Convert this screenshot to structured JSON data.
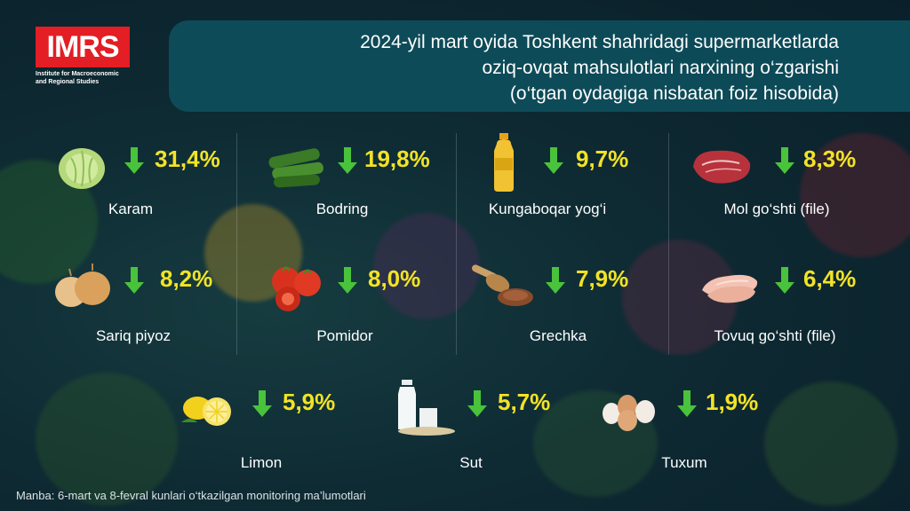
{
  "header": {
    "logo_text": "IMRS",
    "logo_subtitle_line1": "Institute for Macroeconomic",
    "logo_subtitle_line2": "and Regional Studies",
    "title_line1": "2024-yil mart oyida Toshkent shahridagi supermarketlarda",
    "title_line2": "oziq-ovqat mahsulotlari narxining o‘zgarishi",
    "title_line3": "(o‘tgan oydagiga nisbatan foiz hisobida)"
  },
  "colors": {
    "accent_yellow": "#f2e325",
    "arrow_green": "#49c33b",
    "brand_red": "#e31e24",
    "panel_teal": "#0e4e5c"
  },
  "products": [
    {
      "name": "Karam",
      "change": "31,4%",
      "direction": "down",
      "icon": "cabbage-icon"
    },
    {
      "name": "Bodring",
      "change": "19,8%",
      "direction": "down",
      "icon": "cucumber-icon"
    },
    {
      "name": "Kungaboqar yog‘i",
      "change": "9,7%",
      "direction": "down",
      "icon": "oil-bottle-icon"
    },
    {
      "name": "Mol go‘shti (file)",
      "change": "8,3%",
      "direction": "down",
      "icon": "beef-icon"
    },
    {
      "name": "Sariq piyoz",
      "change": "8,2%",
      "direction": "down",
      "icon": "onion-icon"
    },
    {
      "name": "Pomidor",
      "change": "8,0%",
      "direction": "down",
      "icon": "tomato-icon"
    },
    {
      "name": "Grechka",
      "change": "7,9%",
      "direction": "down",
      "icon": "buckwheat-icon"
    },
    {
      "name": "Tovuq go‘shti (file)",
      "change": "6,4%",
      "direction": "down",
      "icon": "chicken-fillet-icon"
    },
    {
      "name": "Limon",
      "change": "5,9%",
      "direction": "down",
      "icon": "lemon-icon"
    },
    {
      "name": "Sut",
      "change": "5,7%",
      "direction": "down",
      "icon": "milk-icon"
    },
    {
      "name": "Tuxum",
      "change": "1,9%",
      "direction": "down",
      "icon": "egg-icon"
    }
  ],
  "footer": {
    "source": "Manba: 6-mart va 8-fevral kunlari o‘tkazilgan monitoring ma’lumotlari"
  }
}
